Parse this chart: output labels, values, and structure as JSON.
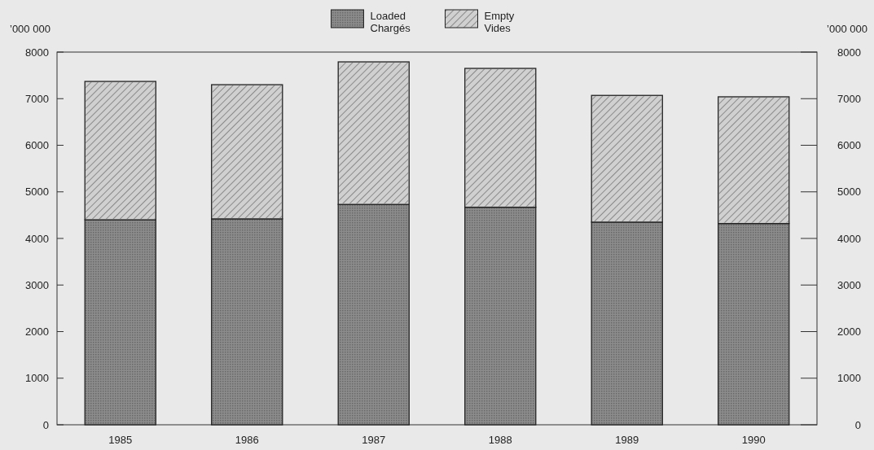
{
  "chart_data": {
    "type": "bar",
    "stacked": true,
    "ylabel": "’000 000",
    "y2label": "’000 000",
    "categories": [
      "1985",
      "1986",
      "1987",
      "1988",
      "1989",
      "1990"
    ],
    "series": [
      {
        "name": "Loaded\nChargés",
        "color": "#8c8c8c",
        "values": [
          4400,
          4420,
          4730,
          4670,
          4350,
          4320
        ]
      },
      {
        "name": "Empty\nVides",
        "color": "#d0d0d0",
        "values": [
          2970,
          2880,
          3060,
          2980,
          2720,
          2720
        ]
      }
    ],
    "ylim": [
      0,
      8000
    ],
    "yticks": [
      0,
      1000,
      2000,
      3000,
      4000,
      5000,
      6000,
      7000,
      8000
    ],
    "y2lim": [
      0,
      8000
    ],
    "y2ticks": [
      0,
      1000,
      2000,
      3000,
      4000,
      5000,
      6000,
      7000,
      8000
    ],
    "legend": "top",
    "grid": false
  }
}
